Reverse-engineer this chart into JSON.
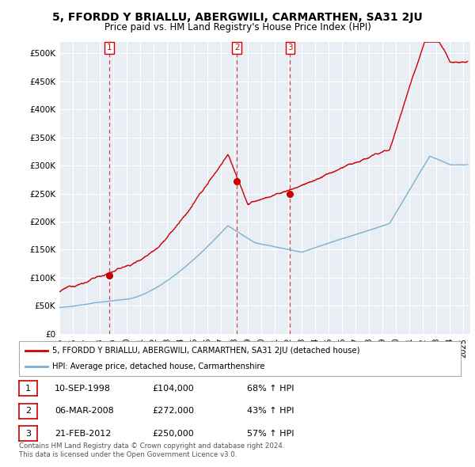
{
  "title": "5, FFORDD Y BRIALLU, ABERGWILI, CARMARTHEN, SA31 2JU",
  "subtitle": "Price paid vs. HM Land Registry's House Price Index (HPI)",
  "title_fontsize": 10,
  "subtitle_fontsize": 8.5,
  "ylabel_ticks": [
    "£0",
    "£50K",
    "£100K",
    "£150K",
    "£200K",
    "£250K",
    "£300K",
    "£350K",
    "£400K",
    "£450K",
    "£500K"
  ],
  "ytick_values": [
    0,
    50000,
    100000,
    150000,
    200000,
    250000,
    300000,
    350000,
    400000,
    450000,
    500000
  ],
  "ylim": [
    0,
    520000
  ],
  "xlim": [
    1995,
    2025.5
  ],
  "transactions": [
    {
      "num": 1,
      "date": "10-SEP-1998",
      "price": 104000,
      "pct": "68%",
      "dir": "↑",
      "x_year": 1998.7
    },
    {
      "num": 2,
      "date": "06-MAR-2008",
      "price": 272000,
      "pct": "43%",
      "dir": "↑",
      "x_year": 2008.18
    },
    {
      "num": 3,
      "date": "21-FEB-2012",
      "price": 250000,
      "pct": "57%",
      "dir": "↑",
      "x_year": 2012.13
    }
  ],
  "legend_line1": "5, FFORDD Y BRIALLU, ABERGWILI, CARMARTHEN, SA31 2JU (detached house)",
  "legend_line2": "HPI: Average price, detached house, Carmarthenshire",
  "footer_line1": "Contains HM Land Registry data © Crown copyright and database right 2024.",
  "footer_line2": "This data is licensed under the Open Government Licence v3.0.",
  "red_color": "#cc0000",
  "blue_color": "#7bafd4",
  "dashed_color": "#cc0000",
  "background_color": "#ffffff",
  "grid_color": "#cccccc",
  "plot_bg_color": "#e8eef4"
}
